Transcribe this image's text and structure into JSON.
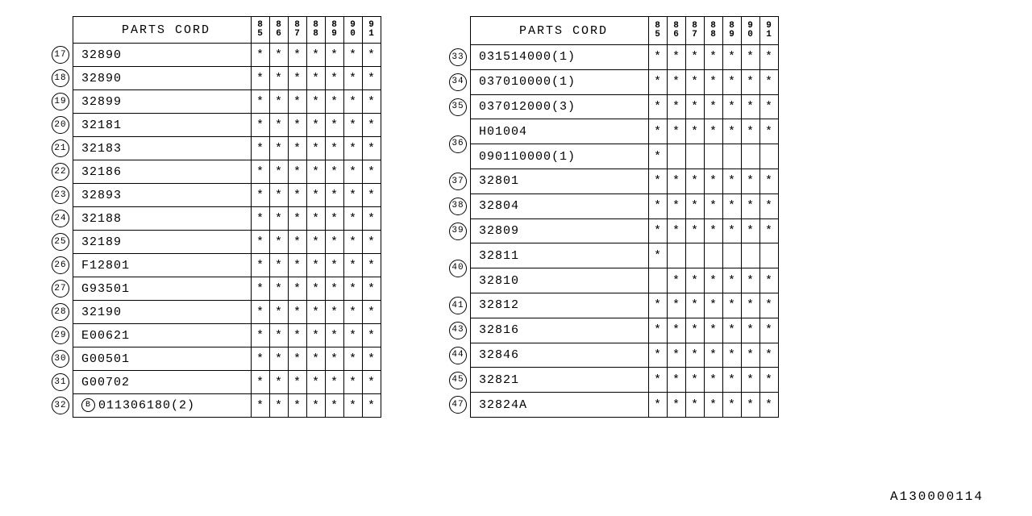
{
  "header_label": "PARTS CORD",
  "year_columns": [
    "85",
    "86",
    "87",
    "88",
    "89",
    "90",
    "91"
  ],
  "asterisk": "*",
  "footer_code": "A130000114",
  "table_left": [
    {
      "key": "17",
      "code": "32890",
      "marks": [
        "*",
        "*",
        "*",
        "*",
        "*",
        "*",
        "*"
      ]
    },
    {
      "key": "18",
      "code": "32890",
      "marks": [
        "*",
        "*",
        "*",
        "*",
        "*",
        "*",
        "*"
      ]
    },
    {
      "key": "19",
      "code": "32899",
      "marks": [
        "*",
        "*",
        "*",
        "*",
        "*",
        "*",
        "*"
      ]
    },
    {
      "key": "20",
      "code": "32181",
      "marks": [
        "*",
        "*",
        "*",
        "*",
        "*",
        "*",
        "*"
      ]
    },
    {
      "key": "21",
      "code": "32183",
      "marks": [
        "*",
        "*",
        "*",
        "*",
        "*",
        "*",
        "*"
      ]
    },
    {
      "key": "22",
      "code": "32186",
      "marks": [
        "*",
        "*",
        "*",
        "*",
        "*",
        "*",
        "*"
      ]
    },
    {
      "key": "23",
      "code": "32893",
      "marks": [
        "*",
        "*",
        "*",
        "*",
        "*",
        "*",
        "*"
      ]
    },
    {
      "key": "24",
      "code": "32188",
      "marks": [
        "*",
        "*",
        "*",
        "*",
        "*",
        "*",
        "*"
      ]
    },
    {
      "key": "25",
      "code": "32189",
      "marks": [
        "*",
        "*",
        "*",
        "*",
        "*",
        "*",
        "*"
      ]
    },
    {
      "key": "26",
      "code": "F12801",
      "marks": [
        "*",
        "*",
        "*",
        "*",
        "*",
        "*",
        "*"
      ]
    },
    {
      "key": "27",
      "code": "G93501",
      "marks": [
        "*",
        "*",
        "*",
        "*",
        "*",
        "*",
        "*"
      ]
    },
    {
      "key": "28",
      "code": "32190",
      "marks": [
        "*",
        "*",
        "*",
        "*",
        "*",
        "*",
        "*"
      ]
    },
    {
      "key": "29",
      "code": "E00621",
      "marks": [
        "*",
        "*",
        "*",
        "*",
        "*",
        "*",
        "*"
      ]
    },
    {
      "key": "30",
      "code": "G00501",
      "marks": [
        "*",
        "*",
        "*",
        "*",
        "*",
        "*",
        "*"
      ]
    },
    {
      "key": "31",
      "code": "G00702",
      "marks": [
        "*",
        "*",
        "*",
        "*",
        "*",
        "*",
        "*"
      ]
    },
    {
      "key": "32",
      "prefix_badge": "B",
      "code": "011306180(2)",
      "marks": [
        "*",
        "*",
        "*",
        "*",
        "*",
        "*",
        "*"
      ]
    }
  ],
  "table_right": [
    {
      "key": "33",
      "code": "031514000(1)",
      "marks": [
        "*",
        "*",
        "*",
        "*",
        "*",
        "*",
        "*"
      ]
    },
    {
      "key": "34",
      "code": "037010000(1)",
      "marks": [
        "*",
        "*",
        "*",
        "*",
        "*",
        "*",
        "*"
      ]
    },
    {
      "key": "35",
      "code": "037012000(3)",
      "marks": [
        "*",
        "*",
        "*",
        "*",
        "*",
        "*",
        "*"
      ]
    },
    {
      "key": "36",
      "rowspan": 2,
      "code": "H01004",
      "marks": [
        "*",
        "*",
        "*",
        "*",
        "*",
        "*",
        "*"
      ]
    },
    {
      "code": "090110000(1)",
      "marks": [
        "*",
        "",
        "",
        "",
        "",
        "",
        ""
      ]
    },
    {
      "key": "37",
      "code": "32801",
      "marks": [
        "*",
        "*",
        "*",
        "*",
        "*",
        "*",
        "*"
      ]
    },
    {
      "key": "38",
      "code": "32804",
      "marks": [
        "*",
        "*",
        "*",
        "*",
        "*",
        "*",
        "*"
      ]
    },
    {
      "key": "39",
      "code": "32809",
      "marks": [
        "*",
        "*",
        "*",
        "*",
        "*",
        "*",
        "*"
      ]
    },
    {
      "key": "40",
      "rowspan": 2,
      "code": "32811",
      "marks": [
        "*",
        "",
        "",
        "",
        "",
        "",
        ""
      ]
    },
    {
      "code": "32810",
      "marks": [
        "",
        "*",
        "*",
        "*",
        "*",
        "*",
        "*"
      ]
    },
    {
      "key": "41",
      "code": "32812",
      "marks": [
        "*",
        "*",
        "*",
        "*",
        "*",
        "*",
        "*"
      ]
    },
    {
      "key": "43",
      "code": "32816",
      "marks": [
        "*",
        "*",
        "*",
        "*",
        "*",
        "*",
        "*"
      ]
    },
    {
      "key": "44",
      "code": "32846",
      "marks": [
        "*",
        "*",
        "*",
        "*",
        "*",
        "*",
        "*"
      ]
    },
    {
      "key": "45",
      "code": "32821",
      "marks": [
        "*",
        "*",
        "*",
        "*",
        "*",
        "*",
        "*"
      ]
    },
    {
      "key": "47",
      "code": "32824A",
      "marks": [
        "*",
        "*",
        "*",
        "*",
        "*",
        "*",
        "*"
      ]
    }
  ]
}
